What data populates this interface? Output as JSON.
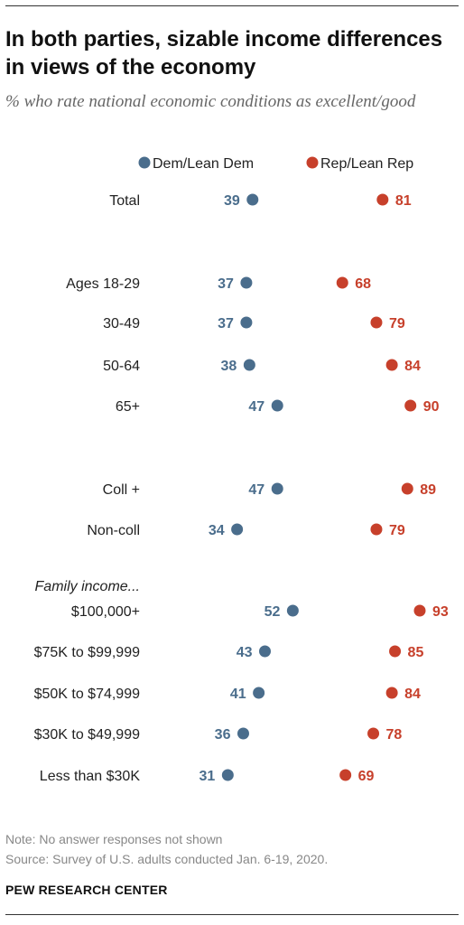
{
  "header": {
    "title": "In both parties, sizable income differences in views of the economy",
    "subtitle": "% who rate national economic conditions as excellent/good"
  },
  "footer": {
    "note": "Note: No answer responses not shown",
    "source": "Source: Survey of U.S. adults conducted Jan. 6-19, 2020.",
    "brand": "PEW RESEARCH CENTER"
  },
  "colors": {
    "dem": "#4a6d8c",
    "rep": "#c7402b"
  },
  "chart_data": {
    "type": "dot",
    "title": "In both parties, sizable income differences in views of the economy",
    "subtitle": "% who rate national economic conditions as excellent/good",
    "legend_position": "top",
    "group_header": "Family income...",
    "categories": [
      "Total",
      "Ages 18-29",
      "30-49",
      "50-64",
      "65+",
      "Coll +",
      "Non-coll",
      "$100,000+",
      "$75K to $99,999",
      "$50K to $74,999",
      "$30K to $49,999",
      "Less than $30K"
    ],
    "series": [
      {
        "name": "Dem/Lean Dem",
        "values": [
          39,
          37,
          37,
          38,
          47,
          47,
          34,
          52,
          43,
          41,
          36,
          31
        ]
      },
      {
        "name": "Rep/Lean Rep",
        "values": [
          81,
          68,
          79,
          84,
          90,
          89,
          79,
          93,
          85,
          84,
          78,
          69
        ]
      }
    ]
  }
}
